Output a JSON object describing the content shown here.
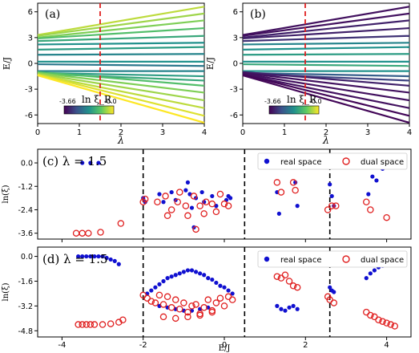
{
  "figure": {
    "panels": {
      "a": {
        "label": "(a)",
        "cbar_label": "ln ξ_R",
        "cbar_min": "-3.66",
        "cbar_max": "-0.0"
      },
      "b": {
        "label": "(b)",
        "cbar_label": "ln ξ_R",
        "cbar_min": "-3.66",
        "cbar_max": "-0.0"
      },
      "c": {
        "label": "(c) λ = 1.5"
      },
      "d": {
        "label": "(d) λ = 1.5"
      }
    },
    "top_xlabel": "λ",
    "top_ylabel": "E/J",
    "top_xticks": [
      "0",
      "1",
      "2",
      "3",
      "4"
    ],
    "top_yticks": [
      "6",
      "3",
      "0",
      "-3",
      "-6"
    ],
    "bottom_xlabel": "E/J",
    "bottom_ylabel": "ln(ξ)",
    "bottom_xticks": [
      "-4",
      "-2",
      "0",
      "2",
      "4"
    ],
    "c_yticks": [
      "0.0",
      "-1.2",
      "-2.4",
      "-3.6"
    ],
    "d_yticks": [
      "0.0",
      "-1.6",
      "-3.2",
      "-4.8"
    ],
    "legend": {
      "real": "real space",
      "dual": "dual space"
    },
    "colors": {
      "real": "#1010d0",
      "dual": "#e02020",
      "dashed_red": "#e02020",
      "dashed_black": "#000000"
    },
    "colormap": "viridis",
    "lambda_marker": 1.5
  },
  "chart_data": [
    {
      "type": "line",
      "panel": "a",
      "xlabel": "λ",
      "ylabel": "E/J",
      "xlim": [
        0,
        4
      ],
      "ylim": [
        -7,
        7
      ],
      "color_scale": {
        "name": "ln ξ_R",
        "min": -3.66,
        "max": 0.0
      },
      "series": [
        {
          "values": [
            [
              0,
              3.3
            ],
            [
              4,
              6.6
            ]
          ],
          "c": 0.9
        },
        {
          "values": [
            [
              0,
              3.2
            ],
            [
              4,
              5.8
            ]
          ],
          "c": 0.85
        },
        {
          "values": [
            [
              0,
              3.0
            ],
            [
              4,
              5.0
            ]
          ],
          "c": 0.8
        },
        {
          "values": [
            [
              0,
              2.9
            ],
            [
              4,
              4.1
            ]
          ],
          "c": 0.7
        },
        {
          "values": [
            [
              0,
              2.6
            ],
            [
              4,
              3.2
            ]
          ],
          "c": 0.6
        },
        {
          "values": [
            [
              0,
              2.2
            ],
            [
              4,
              2.4
            ]
          ],
          "c": 0.5
        },
        {
          "values": [
            [
              0,
              1.6
            ],
            [
              4,
              1.9
            ]
          ],
          "c": 0.55
        },
        {
          "values": [
            [
              0,
              1.0
            ],
            [
              4,
              1.1
            ]
          ],
          "c": 0.45
        },
        {
          "values": [
            [
              0,
              0.2
            ],
            [
              4,
              0.2
            ]
          ],
          "c": 0.5
        },
        {
          "values": [
            [
              0,
              -0.1
            ],
            [
              4,
              -0.3
            ]
          ],
          "c": 0.4
        },
        {
          "values": [
            [
              0,
              -0.9
            ],
            [
              4,
              -0.9
            ]
          ],
          "c": 0.45
        },
        {
          "values": [
            [
              0,
              -1.1
            ],
            [
              4,
              -1.5
            ]
          ],
          "c": 0.55
        },
        {
          "values": [
            [
              0,
              -1.2
            ],
            [
              4,
              -2.0
            ]
          ],
          "c": 0.6
        },
        {
          "values": [
            [
              0,
              -1.0
            ],
            [
              4,
              -2.6
            ]
          ],
          "c": 0.7
        },
        {
          "values": [
            [
              0,
              -1.1
            ],
            [
              4,
              -3.4
            ]
          ],
          "c": 0.8
        },
        {
          "values": [
            [
              0,
              -1.2
            ],
            [
              4,
              -4.3
            ]
          ],
          "c": 0.85
        },
        {
          "values": [
            [
              0,
              -1.3
            ],
            [
              4,
              -5.2
            ]
          ],
          "c": 0.9
        },
        {
          "values": [
            [
              0,
              -1.3
            ],
            [
              4,
              -6.1
            ]
          ],
          "c": 0.95
        },
        {
          "values": [
            [
              0,
              -1.4
            ],
            [
              4,
              -6.9
            ]
          ],
          "c": 1.0
        }
      ]
    },
    {
      "type": "line",
      "panel": "b",
      "xlabel": "λ",
      "ylabel": "E/J",
      "xlim": [
        0,
        4
      ],
      "ylim": [
        -7,
        7
      ],
      "color_scale": {
        "name": "ln ξ_R",
        "min": -3.66,
        "max": 0.0
      },
      "series": [
        {
          "values": [
            [
              0,
              3.3
            ],
            [
              4,
              6.6
            ]
          ],
          "c": 0.05
        },
        {
          "values": [
            [
              0,
              3.2
            ],
            [
              4,
              5.8
            ]
          ],
          "c": 0.05
        },
        {
          "values": [
            [
              0,
              3.0
            ],
            [
              4,
              5.0
            ]
          ],
          "c": 0.1
        },
        {
          "values": [
            [
              0,
              2.9
            ],
            [
              4,
              4.1
            ]
          ],
          "c": 0.1
        },
        {
          "values": [
            [
              0,
              2.6
            ],
            [
              4,
              3.2
            ]
          ],
          "c": 0.15
        },
        {
          "values": [
            [
              0,
              2.2
            ],
            [
              4,
              2.4
            ]
          ],
          "c": 0.45
        },
        {
          "values": [
            [
              0,
              1.6
            ],
            [
              4,
              1.9
            ]
          ],
          "c": 0.5
        },
        {
          "values": [
            [
              0,
              1.0
            ],
            [
              4,
              1.1
            ]
          ],
          "c": 0.55
        },
        {
          "values": [
            [
              0,
              0.2
            ],
            [
              4,
              0.2
            ]
          ],
          "c": 0.5
        },
        {
          "values": [
            [
              0,
              -0.1
            ],
            [
              4,
              -0.3
            ]
          ],
          "c": 0.6
        },
        {
          "values": [
            [
              0,
              -0.9
            ],
            [
              4,
              -0.9
            ]
          ],
          "c": 0.5
        },
        {
          "values": [
            [
              0,
              -1.1
            ],
            [
              4,
              -1.5
            ]
          ],
          "c": 0.3
        },
        {
          "values": [
            [
              0,
              -1.2
            ],
            [
              4,
              -2.0
            ]
          ],
          "c": 0.2
        },
        {
          "values": [
            [
              0,
              -1.0
            ],
            [
              4,
              -2.6
            ]
          ],
          "c": 0.1
        },
        {
          "values": [
            [
              0,
              -1.1
            ],
            [
              4,
              -3.4
            ]
          ],
          "c": 0.05
        },
        {
          "values": [
            [
              0,
              -1.2
            ],
            [
              4,
              -4.3
            ]
          ],
          "c": 0.05
        },
        {
          "values": [
            [
              0,
              -1.3
            ],
            [
              4,
              -5.2
            ]
          ],
          "c": 0.05
        },
        {
          "values": [
            [
              0,
              -1.3
            ],
            [
              4,
              -6.1
            ]
          ],
          "c": 0.02
        },
        {
          "values": [
            [
              0,
              -1.4
            ],
            [
              4,
              -6.9
            ]
          ],
          "c": 0.02
        }
      ]
    },
    {
      "type": "scatter",
      "panel": "c",
      "xlabel": "E/J",
      "ylabel": "ln(ξ)",
      "xlim": [
        -4.6,
        4.6
      ],
      "ylim": [
        -3.9,
        0.7
      ],
      "vlines": [
        -2.0,
        0.5,
        2.6
      ],
      "series": [
        {
          "name": "real space",
          "marker": "filled",
          "x": [
            -3.5,
            -3.3,
            -3.1,
            -2.0,
            -1.95,
            -1.6,
            -1.5,
            -1.3,
            -1.2,
            -0.95,
            -0.9,
            -0.85,
            -0.8,
            -0.75,
            -0.7,
            -0.55,
            -0.5,
            -0.3,
            -0.2,
            0.05,
            0.1,
            0.15,
            1.3,
            1.35,
            1.75,
            1.8,
            2.6,
            2.65,
            2.7,
            3.55,
            3.65,
            3.75,
            3.9,
            4.1
          ],
          "y": [
            0.0,
            0.0,
            0.0,
            -1.8,
            -2.0,
            -1.6,
            -2.0,
            -1.5,
            -1.9,
            -1.4,
            -1.0,
            -1.6,
            -2.3,
            -3.3,
            -1.8,
            -1.5,
            -2.0,
            -1.7,
            -2.2,
            -1.9,
            -1.7,
            -1.8,
            -1.5,
            -2.6,
            -1.0,
            -2.2,
            -1.1,
            -1.7,
            -2.2,
            -1.6,
            -0.7,
            -0.9,
            -0.3,
            -0.2
          ]
        },
        {
          "name": "dual space",
          "marker": "open",
          "x": [
            -3.65,
            -3.5,
            -3.35,
            -3.05,
            -2.55,
            -2.0,
            -1.95,
            -1.65,
            -1.45,
            -1.4,
            -1.3,
            -1.15,
            -1.1,
            -0.95,
            -0.9,
            -0.75,
            -0.7,
            -0.6,
            -0.5,
            -0.45,
            -0.3,
            -0.2,
            -0.1,
            0.0,
            0.1,
            1.3,
            1.4,
            1.7,
            1.75,
            2.55,
            2.65,
            2.75,
            3.5,
            3.6,
            4.0
          ],
          "y": [
            -3.6,
            -3.6,
            -3.6,
            -3.55,
            -3.1,
            -2.0,
            -1.85,
            -2.0,
            -1.7,
            -2.7,
            -2.4,
            -2.0,
            -1.5,
            -2.2,
            -2.7,
            -1.7,
            -3.4,
            -2.2,
            -2.6,
            -2.0,
            -2.1,
            -2.5,
            -1.6,
            -2.1,
            -2.2,
            -1.0,
            -1.5,
            -1.0,
            -1.4,
            -2.4,
            -2.2,
            -2.2,
            -2.0,
            -2.4,
            -2.8
          ]
        }
      ]
    },
    {
      "type": "scatter",
      "panel": "d",
      "xlabel": "E/J",
      "ylabel": "ln(ξ)",
      "xlim": [
        -4.6,
        4.6
      ],
      "ylim": [
        -5.2,
        0.6
      ],
      "vlines": [
        -2.0,
        0.5,
        2.6
      ],
      "series": [
        {
          "name": "real space",
          "marker": "filled",
          "x": [
            -3.6,
            -3.5,
            -3.4,
            -3.3,
            -3.2,
            -3.1,
            -3.0,
            -2.9,
            -2.8,
            -2.7,
            -2.6,
            -1.9,
            -1.8,
            -1.7,
            -1.6,
            -1.5,
            -1.4,
            -1.3,
            -1.2,
            -1.1,
            -1.0,
            -0.9,
            -0.8,
            -0.7,
            -0.6,
            -0.5,
            -0.4,
            -0.3,
            -0.2,
            -0.1,
            0.0,
            0.1,
            0.2,
            -1.6,
            -1.4,
            -1.2,
            -1.0,
            -0.8,
            -0.6,
            -0.4,
            1.3,
            1.4,
            1.5,
            1.6,
            1.7,
            1.8,
            2.6,
            2.65,
            2.7,
            3.5,
            3.6,
            3.7,
            3.8,
            3.9,
            4.0,
            4.1
          ],
          "y": [
            0.0,
            0.0,
            0.0,
            0.0,
            0.0,
            0.0,
            0.0,
            -0.1,
            -0.2,
            -0.3,
            -0.5,
            -2.4,
            -2.2,
            -2.0,
            -1.8,
            -1.6,
            -1.4,
            -1.3,
            -1.2,
            -1.1,
            -1.0,
            -0.9,
            -0.9,
            -1.0,
            -1.1,
            -1.2,
            -1.4,
            -1.5,
            -1.7,
            -1.9,
            -2.0,
            -2.2,
            -2.4,
            -3.2,
            -3.3,
            -3.4,
            -3.5,
            -3.5,
            -3.4,
            -3.3,
            -3.2,
            -3.4,
            -3.5,
            -3.3,
            -3.2,
            -3.4,
            -2.0,
            -2.2,
            -2.3,
            -1.4,
            -1.1,
            -0.9,
            -0.7,
            -0.6,
            -0.5,
            -0.4
          ]
        },
        {
          "name": "dual space",
          "marker": "open",
          "x": [
            -3.6,
            -3.5,
            -3.4,
            -3.3,
            -3.2,
            -3.0,
            -2.8,
            -2.6,
            -2.5,
            -2.0,
            -1.9,
            -1.8,
            -1.7,
            -1.6,
            -1.5,
            -1.4,
            -1.3,
            -1.2,
            -1.1,
            -1.0,
            -0.9,
            -0.8,
            -0.7,
            -0.6,
            -0.5,
            -0.4,
            -0.3,
            -0.2,
            -0.1,
            0.0,
            0.1,
            0.2,
            -1.5,
            -1.2,
            -0.9,
            -0.6,
            -0.3,
            1.3,
            1.4,
            1.5,
            1.6,
            1.7,
            1.8,
            2.55,
            2.6,
            2.7,
            3.5,
            3.6,
            3.7,
            3.8,
            3.9,
            4.0,
            4.1,
            4.2
          ],
          "y": [
            -4.4,
            -4.4,
            -4.4,
            -4.4,
            -4.4,
            -4.4,
            -4.35,
            -4.25,
            -4.1,
            -2.5,
            -2.7,
            -2.9,
            -3.0,
            -2.5,
            -3.1,
            -2.6,
            -3.3,
            -2.8,
            -3.4,
            -3.0,
            -3.6,
            -3.2,
            -3.1,
            -3.7,
            -3.3,
            -2.8,
            -3.5,
            -3.0,
            -2.7,
            -3.2,
            -2.6,
            -2.8,
            -3.9,
            -4.0,
            -3.9,
            -3.8,
            -3.6,
            -1.3,
            -1.4,
            -1.2,
            -1.6,
            -1.9,
            -2.0,
            -2.6,
            -2.8,
            -3.0,
            -3.6,
            -3.8,
            -3.9,
            -4.1,
            -4.2,
            -4.3,
            -4.4,
            -4.5
          ]
        }
      ]
    }
  ]
}
